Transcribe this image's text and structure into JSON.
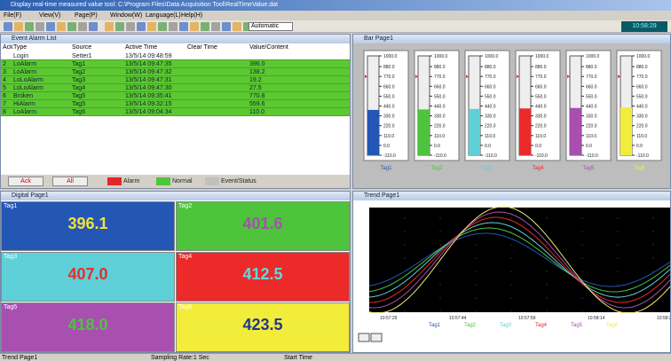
{
  "window": {
    "title": "Display real-time measured value tool: C:\\Program Files\\Data Acquisition Tool\\RealTimeValue.dat",
    "menu": [
      "File(F)",
      "View(V)",
      "Page(P)",
      "Window(W)",
      "Language(L)",
      "Help(H)"
    ],
    "zoom": "Automatic",
    "clock": "10:58:29"
  },
  "event_list": {
    "title": "Event Alarm List",
    "columns": [
      "Ack",
      "Type",
      "Source",
      "Active Time",
      "Clear Time",
      "Value/Content"
    ],
    "rows": [
      [
        "",
        "Login",
        "Setter1",
        "13/5/14 09:48:59",
        "",
        ""
      ],
      [
        "2",
        "LoAlarm",
        "Tag1",
        "13/5/14 09:47:35",
        "",
        "396.0"
      ],
      [
        "3",
        "LoAlarm",
        "Tag2",
        "13/5/14 09:47:32",
        "",
        "138.2"
      ],
      [
        "4",
        "LoLoAlarm",
        "Tag3",
        "13/5/14 09:47:31",
        "",
        "19.2"
      ],
      [
        "5",
        "LoLoAlarm",
        "Tag4",
        "13/5/14 09:47:30",
        "",
        "27.5"
      ],
      [
        "6",
        "Broken",
        "Tag5",
        "13/5/14 09:35:41",
        "",
        "770.8"
      ],
      [
        "7",
        "HiAlarm",
        "Tag5",
        "13/5/14 09:32:15",
        "",
        "559.6"
      ],
      [
        "8",
        "LoAlarm",
        "Tag6",
        "13/5/14 09:04:34",
        "",
        "110.0"
      ]
    ],
    "buttons": [
      "Ack",
      "All"
    ],
    "legend": [
      "Alarm",
      "Normal",
      "Event/Status"
    ]
  },
  "bar_page": {
    "title": "Bar Page1",
    "scale": [
      "1000.0",
      "880.0",
      "770.0",
      "660.0",
      "550.0",
      "440.0",
      "330.0",
      "220.0",
      "110.0",
      "0.0",
      "-110.0"
    ]
  },
  "digital_page": {
    "title": "Digital Page1",
    "tiles": [
      {
        "name": "Tag1",
        "value": "396.1"
      },
      {
        "name": "Tag2",
        "value": "401.6"
      },
      {
        "name": "Tag3",
        "value": "407.0"
      },
      {
        "name": "Tag4",
        "value": "412.5"
      },
      {
        "name": "Tag5",
        "value": "418.0"
      },
      {
        "name": "Tag6",
        "value": "423.5"
      }
    ]
  },
  "trend_page": {
    "title": "Trend Page1",
    "time_labels": [
      "10:57:29",
      "10:57:44",
      "10:57:59",
      "10:58:14",
      "10:58:29"
    ]
  },
  "status_bar": [
    "Trend Page1",
    "Sampling Rate:1 Sec",
    "Start Time"
  ]
}
